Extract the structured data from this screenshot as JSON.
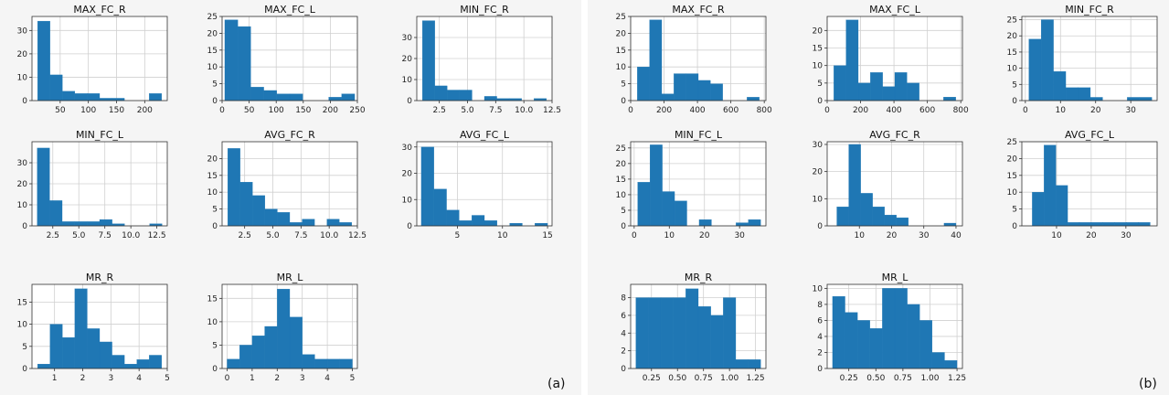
{
  "panel_labels": {
    "a": "(a)",
    "b": "(b)"
  },
  "style": {
    "bar_color": "#1f77b4",
    "grid_color": "#d0d0d0",
    "axis_color": "#333333"
  },
  "chart_data": [
    {
      "id": "a-max-fc-r",
      "panel": "a",
      "type": "bar",
      "title": "MAX_FC_R",
      "bin_edges": [
        10,
        32,
        54,
        76,
        98,
        120,
        142,
        164,
        186,
        208,
        230
      ],
      "values": [
        34,
        11,
        4,
        3,
        3,
        1,
        1,
        0,
        0,
        3
      ],
      "xlim": [
        0,
        240
      ],
      "ylim": [
        0,
        36
      ],
      "xticks": [
        50,
        100,
        150,
        200
      ],
      "xtick_labels": [
        "50",
        "100",
        "150",
        "200"
      ],
      "yticks": [
        0,
        10,
        20,
        30
      ],
      "ytick_labels": [
        "0",
        "10",
        "20",
        "30"
      ]
    },
    {
      "id": "a-max-fc-l",
      "panel": "a",
      "type": "bar",
      "title": "MAX_FC_L",
      "bin_edges": [
        5,
        29,
        53,
        77,
        101,
        125,
        149,
        173,
        197,
        221,
        245
      ],
      "values": [
        24,
        22,
        4,
        3,
        2,
        2,
        0,
        0,
        1,
        2
      ],
      "xlim": [
        0,
        250
      ],
      "ylim": [
        0,
        25
      ],
      "xticks": [
        0,
        50,
        100,
        150,
        200,
        250
      ],
      "xtick_labels": [
        "0",
        "50",
        "100",
        "150",
        "200",
        "250"
      ],
      "yticks": [
        0,
        5,
        10,
        15,
        20,
        25
      ],
      "ytick_labels": [
        "0",
        "5",
        "10",
        "15",
        "20",
        "25"
      ]
    },
    {
      "id": "a-min-fc-r",
      "panel": "a",
      "type": "bar",
      "title": "MIN_FC_R",
      "bin_edges": [
        1,
        2.1,
        3.2,
        4.3,
        5.4,
        6.5,
        7.6,
        8.7,
        9.8,
        10.9,
        12
      ],
      "values": [
        38,
        7,
        5,
        5,
        0,
        2,
        1,
        1,
        0,
        1
      ],
      "xlim": [
        0.5,
        12.5
      ],
      "ylim": [
        0,
        40
      ],
      "xticks": [
        2.5,
        5,
        7.5,
        10,
        12.5
      ],
      "xtick_labels": [
        "2.5",
        "5.0",
        "7.5",
        "10.0",
        "12.5"
      ],
      "yticks": [
        0,
        10,
        20,
        30
      ],
      "ytick_labels": [
        "0",
        "10",
        "20",
        "30"
      ]
    },
    {
      "id": "a-min-fc-l",
      "panel": "a",
      "type": "bar",
      "title": "MIN_FC_L",
      "bin_edges": [
        1,
        2.2,
        3.4,
        4.6,
        5.8,
        7,
        8.2,
        9.4,
        10.6,
        11.8,
        13
      ],
      "values": [
        37,
        12,
        2,
        2,
        2,
        3,
        1,
        0,
        0,
        1
      ],
      "xlim": [
        0.5,
        13.5
      ],
      "ylim": [
        0,
        40
      ],
      "xticks": [
        2.5,
        5,
        7.5,
        10,
        12.5
      ],
      "xtick_labels": [
        "2.5",
        "5.0",
        "7.5",
        "10.0",
        "12.5"
      ],
      "yticks": [
        0,
        10,
        20,
        30
      ],
      "ytick_labels": [
        "0",
        "10",
        "20",
        "30"
      ]
    },
    {
      "id": "a-avg-fc-r",
      "panel": "a",
      "type": "bar",
      "title": "AVG_FC_R",
      "bin_edges": [
        1,
        2.1,
        3.2,
        4.3,
        5.4,
        6.5,
        7.6,
        8.7,
        9.8,
        10.9,
        12
      ],
      "values": [
        23,
        13,
        9,
        5,
        4,
        1,
        2,
        0,
        2,
        1
      ],
      "xlim": [
        0.5,
        12.5
      ],
      "ylim": [
        0,
        25
      ],
      "xticks": [
        2.5,
        5,
        7.5,
        10,
        12.5
      ],
      "xtick_labels": [
        "2.5",
        "5.0",
        "7.5",
        "10.0",
        "12.5"
      ],
      "yticks": [
        0,
        5,
        10,
        15,
        20
      ],
      "ytick_labels": [
        "0",
        "5",
        "10",
        "15",
        "20"
      ]
    },
    {
      "id": "a-avg-fc-l",
      "panel": "a",
      "type": "bar",
      "title": "AVG_FC_L",
      "bin_edges": [
        1,
        2.4,
        3.8,
        5.2,
        6.6,
        8,
        9.4,
        10.8,
        12.2,
        13.6,
        15
      ],
      "values": [
        30,
        14,
        6,
        2,
        4,
        2,
        0,
        1,
        0,
        1
      ],
      "xlim": [
        0.5,
        15.5
      ],
      "ylim": [
        0,
        32
      ],
      "xticks": [
        5,
        10,
        15
      ],
      "xtick_labels": [
        "5",
        "10",
        "15"
      ],
      "yticks": [
        0,
        10,
        20,
        30
      ],
      "ytick_labels": [
        "0",
        "10",
        "20",
        "30"
      ]
    },
    {
      "id": "a-mr-r",
      "panel": "a",
      "type": "bar",
      "title": "MR_R",
      "bin_edges": [
        0.4,
        0.84,
        1.28,
        1.72,
        2.16,
        2.6,
        3.04,
        3.48,
        3.92,
        4.36,
        4.8
      ],
      "values": [
        1,
        10,
        7,
        18,
        9,
        6,
        3,
        1,
        2,
        3
      ],
      "xlim": [
        0.2,
        5
      ],
      "ylim": [
        0,
        19
      ],
      "xticks": [
        1,
        2,
        3,
        4,
        5
      ],
      "xtick_labels": [
        "1",
        "2",
        "3",
        "4",
        "5"
      ],
      "yticks": [
        0,
        5,
        10,
        15
      ],
      "ytick_labels": [
        "0",
        "5",
        "10",
        "15"
      ]
    },
    {
      "id": "a-mr-l",
      "panel": "a",
      "type": "bar",
      "title": "MR_L",
      "bin_edges": [
        0,
        0.5,
        1,
        1.5,
        2,
        2.5,
        3,
        3.5,
        4,
        4.5,
        5
      ],
      "values": [
        2,
        5,
        7,
        9,
        17,
        11,
        3,
        2,
        2,
        2
      ],
      "xlim": [
        -0.2,
        5.2
      ],
      "ylim": [
        0,
        18
      ],
      "xticks": [
        0,
        1,
        2,
        3,
        4,
        5
      ],
      "xtick_labels": [
        "0",
        "1",
        "2",
        "3",
        "4",
        "5"
      ],
      "yticks": [
        0,
        5,
        10,
        15
      ],
      "ytick_labels": [
        "0",
        "5",
        "10",
        "15"
      ]
    },
    {
      "id": "b-max-fc-r",
      "panel": "b",
      "type": "bar",
      "title": "MAX_FC_R",
      "bin_edges": [
        40,
        113,
        186,
        259,
        332,
        405,
        478,
        551,
        624,
        697,
        770
      ],
      "values": [
        10,
        24,
        2,
        8,
        8,
        6,
        5,
        0,
        0,
        1
      ],
      "xlim": [
        0,
        810
      ],
      "ylim": [
        0,
        25
      ],
      "xticks": [
        0,
        200,
        400,
        600,
        800
      ],
      "xtick_labels": [
        "0",
        "200",
        "400",
        "600",
        "800"
      ],
      "yticks": [
        0,
        5,
        10,
        15,
        20,
        25
      ],
      "ytick_labels": [
        "0",
        "5",
        "10",
        "15",
        "20",
        "25"
      ]
    },
    {
      "id": "b-max-fc-l",
      "panel": "b",
      "type": "bar",
      "title": "MAX_FC_L",
      "bin_edges": [
        40,
        113,
        186,
        259,
        332,
        405,
        478,
        551,
        624,
        697,
        770
      ],
      "values": [
        10,
        23,
        5,
        8,
        4,
        8,
        5,
        0,
        0,
        1
      ],
      "xlim": [
        0,
        810
      ],
      "ylim": [
        0,
        24
      ],
      "xticks": [
        0,
        200,
        400,
        600,
        800
      ],
      "xtick_labels": [
        "0",
        "200",
        "400",
        "600",
        "800"
      ],
      "yticks": [
        0,
        5,
        10,
        15,
        20
      ],
      "ytick_labels": [
        "0",
        "5",
        "10",
        "15",
        "20"
      ]
    },
    {
      "id": "b-min-fc-r",
      "panel": "b",
      "type": "bar",
      "title": "MIN_FC_R",
      "bin_edges": [
        1,
        4.5,
        8,
        11.5,
        15,
        18.5,
        22,
        25.5,
        29,
        32.5,
        36
      ],
      "values": [
        19,
        25,
        9,
        4,
        4,
        1,
        0,
        0,
        1,
        1
      ],
      "xlim": [
        -1,
        37.5
      ],
      "ylim": [
        0,
        26
      ],
      "xticks": [
        0,
        10,
        20,
        30
      ],
      "xtick_labels": [
        "0",
        "10",
        "20",
        "30"
      ],
      "yticks": [
        0,
        5,
        10,
        15,
        20,
        25
      ],
      "ytick_labels": [
        "0",
        "5",
        "10",
        "15",
        "20",
        "25"
      ]
    },
    {
      "id": "b-min-fc-l",
      "panel": "b",
      "type": "bar",
      "title": "MIN_FC_L",
      "bin_edges": [
        1,
        4.5,
        8,
        11.5,
        15,
        18.5,
        22,
        25.5,
        29,
        32.5,
        36
      ],
      "values": [
        14,
        26,
        11,
        8,
        0,
        2,
        0,
        0,
        1,
        2
      ],
      "xlim": [
        -1,
        37.5
      ],
      "ylim": [
        0,
        27
      ],
      "xticks": [
        0,
        10,
        20,
        30
      ],
      "xtick_labels": [
        "0",
        "10",
        "20",
        "30"
      ],
      "yticks": [
        0,
        5,
        10,
        15,
        20,
        25
      ],
      "ytick_labels": [
        "0",
        "5",
        "10",
        "15",
        "20",
        "25"
      ]
    },
    {
      "id": "b-avg-fc-r",
      "panel": "b",
      "type": "bar",
      "title": "AVG_FC_R",
      "bin_edges": [
        3,
        6.7,
        10.4,
        14.1,
        17.8,
        21.5,
        25.2,
        28.9,
        32.6,
        36.3,
        40
      ],
      "values": [
        7,
        30,
        12,
        7,
        4,
        3,
        0,
        0,
        0,
        1
      ],
      "xlim": [
        0,
        42
      ],
      "ylim": [
        0,
        31
      ],
      "xticks": [
        10,
        20,
        30,
        40
      ],
      "xtick_labels": [
        "10",
        "20",
        "30",
        "40"
      ],
      "yticks": [
        0,
        10,
        20,
        30
      ],
      "ytick_labels": [
        "0",
        "10",
        "20",
        "30"
      ]
    },
    {
      "id": "b-avg-fc-l",
      "panel": "b",
      "type": "bar",
      "title": "AVG_FC_L",
      "bin_edges": [
        3,
        6.4,
        9.8,
        13.2,
        16.6,
        20,
        23.4,
        26.8,
        30.2,
        33.6,
        37
      ],
      "values": [
        10,
        24,
        12,
        1,
        1,
        1,
        1,
        1,
        1,
        1
      ],
      "xlim": [
        0,
        39
      ],
      "ylim": [
        0,
        25
      ],
      "xticks": [
        10,
        20,
        30
      ],
      "xtick_labels": [
        "10",
        "20",
        "30"
      ],
      "yticks": [
        0,
        5,
        10,
        15,
        20,
        25
      ],
      "ytick_labels": [
        "0",
        "5",
        "10",
        "15",
        "20",
        "25"
      ]
    },
    {
      "id": "b-mr-r",
      "panel": "b",
      "type": "bar",
      "title": "MR_R",
      "bin_edges": [
        0.1,
        0.22,
        0.34,
        0.46,
        0.58,
        0.7,
        0.82,
        0.94,
        1.06,
        1.18,
        1.3
      ],
      "values": [
        8,
        8,
        8,
        8,
        9,
        7,
        6,
        8,
        1,
        1
      ],
      "xlim": [
        0.05,
        1.35
      ],
      "ylim": [
        0,
        9.5
      ],
      "xticks": [
        0.25,
        0.5,
        0.75,
        1,
        1.25
      ],
      "xtick_labels": [
        "0.25",
        "0.50",
        "0.75",
        "1.00",
        "1.25"
      ],
      "yticks": [
        0,
        2,
        4,
        6,
        8
      ],
      "ytick_labels": [
        "0",
        "2",
        "4",
        "6",
        "8"
      ]
    },
    {
      "id": "b-mr-l",
      "panel": "b",
      "type": "bar",
      "title": "MR_L",
      "bin_edges": [
        0.1,
        0.215,
        0.33,
        0.445,
        0.56,
        0.675,
        0.79,
        0.905,
        1.02,
        1.135,
        1.25
      ],
      "values": [
        9,
        7,
        6,
        5,
        10,
        10,
        8,
        6,
        2,
        1
      ],
      "xlim": [
        0.05,
        1.3
      ],
      "ylim": [
        0,
        10.5
      ],
      "xticks": [
        0.25,
        0.5,
        0.75,
        1,
        1.25
      ],
      "xtick_labels": [
        "0.25",
        "0.50",
        "0.75",
        "1.00",
        "1.25"
      ],
      "yticks": [
        0,
        2,
        4,
        6,
        8,
        10
      ],
      "ytick_labels": [
        "0",
        "2",
        "4",
        "6",
        "8",
        "10"
      ]
    }
  ]
}
